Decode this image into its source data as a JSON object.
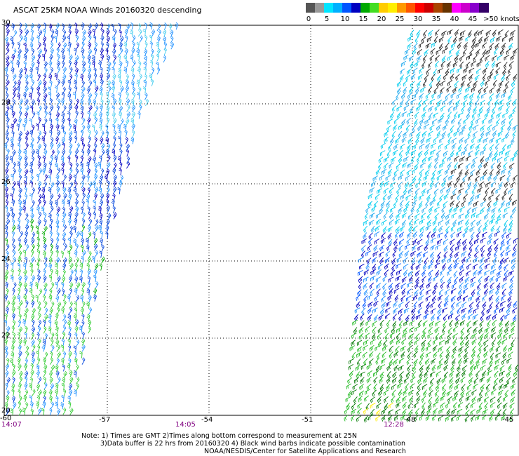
{
  "header": {
    "title": "ASCAT 25KM NOAA Winds 20160320 descending"
  },
  "legend": {
    "colors": [
      "#555555",
      "#999999",
      "#00e5ff",
      "#00b0ff",
      "#0055ff",
      "#0000c0",
      "#00aa00",
      "#44dd22",
      "#ffcc00",
      "#ffee00",
      "#ff9900",
      "#ff5500",
      "#ff0000",
      "#cc0000",
      "#aa4400",
      "#663300",
      "#ff00ff",
      "#cc00cc",
      "#8800cc",
      "#330066"
    ],
    "labels": [
      "0",
      "5",
      "10",
      "15",
      "20",
      "25",
      "30",
      "35",
      "40",
      "45",
      ">50 knots"
    ]
  },
  "axes": {
    "lat_labels": [
      "30",
      "28",
      "26",
      "24",
      "22",
      "20"
    ],
    "lon_labels": [
      "-60",
      "-57",
      "-54",
      "-51",
      "-48",
      "-45"
    ]
  },
  "times": [
    "14:07",
    "14:05",
    "12:28"
  ],
  "notes": [
    "Note: 1) Times are GMT 2)Times along bottom correspond to measurement at 25N",
    "3)Data buffer is 22 hrs from 20160320 4) Black wind barbs indicate possible contamination",
    "NOAA/NESDIS/Center for Satellite Applications and Research"
  ]
}
